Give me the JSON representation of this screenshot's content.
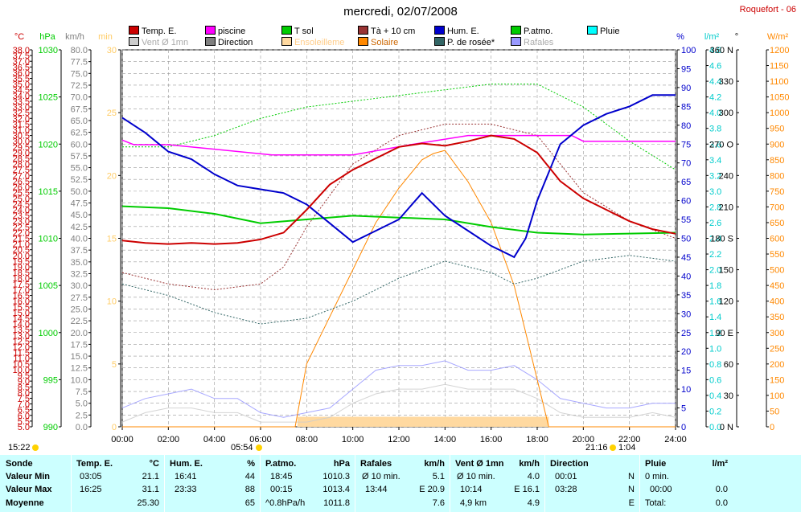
{
  "title": "mercredi, 02/07/2008",
  "station": "Roquefort - 06",
  "legend": [
    {
      "label": "Temp. E.",
      "color": "#cc0000"
    },
    {
      "label": "piscine",
      "color": "#ff00ff"
    },
    {
      "label": "T sol",
      "color": "#00cc00"
    },
    {
      "label": "Tà + 10 cm",
      "color": "#993333"
    },
    {
      "label": "Hum. E.",
      "color": "#0000cc"
    },
    {
      "label": "P.atmo.",
      "color": "#00cc00"
    },
    {
      "label": "Pluie",
      "color": "#00ffff"
    },
    {
      "label": "Vent Ø 1mn",
      "color": "#cccccc"
    },
    {
      "label": "Direction",
      "color": "#808080"
    },
    {
      "label": "Ensoleilleme",
      "color": "#ffd9a0"
    },
    {
      "label": "Solaire",
      "color": "#ff8800"
    },
    {
      "label": "P. de rosée*",
      "color": "#336666"
    },
    {
      "label": "Rafales",
      "color": "#9999ff"
    }
  ],
  "chart_data": {
    "type": "line",
    "x_ticks": [
      "00:00",
      "02:00",
      "04:00",
      "06:00",
      "08:00",
      "10:00",
      "12:00",
      "14:00",
      "16:00",
      "18:00",
      "20:00",
      "22:00",
      "24:00"
    ],
    "axes": {
      "temp_c": {
        "unit": "°C",
        "range": [
          5.0,
          38.0
        ],
        "step": 0.5,
        "color": "#cc0000"
      },
      "pressure_hpa": {
        "unit": "hPa",
        "range": [
          990,
          1030
        ],
        "step": 5,
        "color": "#00cc00"
      },
      "wind_kmh": {
        "unit": "km/h",
        "range": [
          0,
          80
        ],
        "step": 2.5,
        "color": "#808080"
      },
      "minutes": {
        "unit": "min",
        "range": [
          0,
          30
        ],
        "step": 5,
        "color": "#ffcc66"
      },
      "humidity_pct": {
        "unit": "%",
        "range": [
          0,
          100
        ],
        "step": 5,
        "color": "#0000cc"
      },
      "rain_lm2": {
        "unit": "l/m²",
        "range": [
          0,
          4.8
        ],
        "step": 0.2,
        "color": "#00cccc"
      },
      "direction_deg": {
        "unit": "°",
        "ticks": [
          "0 N",
          "30",
          "60",
          "90 E",
          "120",
          "150",
          "180 S",
          "210",
          "240",
          "270 O",
          "300",
          "330",
          "360 N"
        ]
      },
      "solar_wm2": {
        "unit": "W/m²",
        "range": [
          0,
          1200
        ],
        "step": 50,
        "color": "#ff8800"
      }
    },
    "series": [
      {
        "name": "Temp. E.",
        "unit": "°C",
        "x": [
          0,
          1,
          2,
          3,
          4,
          5,
          6,
          7,
          8,
          9,
          10,
          11,
          12,
          13,
          14,
          15,
          16,
          17,
          18,
          19,
          20,
          21,
          22,
          23,
          24
        ],
        "values": [
          21.3,
          21.1,
          21.0,
          21.1,
          21.0,
          21.1,
          21.4,
          22.0,
          24.0,
          26.2,
          27.5,
          28.5,
          29.5,
          29.8,
          29.6,
          30.0,
          30.5,
          30.2,
          29.0,
          26.5,
          25.0,
          24.0,
          23.0,
          22.3,
          21.9
        ]
      },
      {
        "name": "piscine",
        "unit": "°C",
        "x": [
          0,
          0.5,
          2,
          3.5,
          6.5,
          10,
          12.5,
          15,
          17,
          18.5,
          19.5,
          20,
          24
        ],
        "values": [
          30.1,
          29.7,
          29.7,
          29.4,
          28.8,
          28.8,
          29.7,
          30.5,
          30.5,
          30.5,
          30.5,
          30.0,
          30.0
        ]
      },
      {
        "name": "Hum. E.",
        "unit": "%",
        "x": [
          0,
          1,
          2,
          3,
          4,
          5,
          6,
          7,
          8,
          9,
          10,
          11,
          12,
          13,
          14,
          15,
          16,
          17,
          17.5,
          18,
          19,
          20,
          21,
          22,
          23,
          24
        ],
        "values": [
          82,
          78,
          73,
          71,
          67,
          64,
          63,
          62,
          59,
          54,
          49,
          52,
          55,
          62,
          56,
          52,
          48,
          45,
          50,
          60,
          75,
          80,
          83,
          85,
          88,
          88
        ]
      },
      {
        "name": "P.atmo.",
        "unit": "hPa",
        "x": [
          0,
          2,
          4,
          6,
          8,
          10,
          12,
          14,
          16,
          18,
          20,
          22,
          24
        ],
        "values": [
          1013.4,
          1013.2,
          1012.6,
          1011.6,
          1012.0,
          1012.4,
          1012.2,
          1012.0,
          1011.2,
          1010.6,
          1010.4,
          1010.5,
          1010.6
        ]
      },
      {
        "name": "Tà + 10 cm",
        "unit": "°C",
        "x": [
          0,
          2,
          4,
          6,
          7,
          8,
          10,
          12,
          14,
          16,
          18,
          19,
          20,
          22,
          24
        ],
        "values": [
          18.5,
          17.5,
          17.0,
          17.5,
          19.0,
          22.5,
          28.0,
          30.5,
          31.5,
          31.5,
          30.5,
          28.0,
          25.5,
          23.0,
          21.5
        ]
      },
      {
        "name": "T sol",
        "unit": "°C",
        "x": [
          0,
          2,
          4,
          6,
          8,
          10,
          12,
          14,
          16,
          18,
          20,
          22,
          24
        ],
        "values": [
          29.5,
          29.5,
          30.5,
          32.0,
          33.0,
          33.5,
          34.0,
          34.5,
          35.0,
          35.0,
          33.0,
          30.0,
          27.5
        ]
      },
      {
        "name": "P. de rosée*",
        "unit": "°C",
        "x": [
          0,
          2,
          4,
          6,
          8,
          10,
          12,
          14,
          16,
          17,
          18,
          20,
          22,
          24
        ],
        "values": [
          17.5,
          16.5,
          15.0,
          14.0,
          14.5,
          16.0,
          18.0,
          19.5,
          18.5,
          17.5,
          18.0,
          19.5,
          20.0,
          19.5
        ]
      },
      {
        "name": "Solaire",
        "unit": "W/m²",
        "x": [
          0,
          7.5,
          8,
          9,
          10,
          11,
          12,
          13,
          13.5,
          14,
          15,
          16,
          17,
          17.5,
          18,
          18.5,
          24
        ],
        "values": [
          0,
          0,
          200,
          350,
          500,
          650,
          760,
          850,
          870,
          880,
          780,
          650,
          450,
          300,
          150,
          0,
          0
        ]
      },
      {
        "name": "Rafales",
        "unit": "km/h",
        "x": [
          0,
          1,
          2,
          3,
          4,
          5,
          6,
          7,
          8,
          9,
          10,
          11,
          12,
          13,
          14,
          15,
          16,
          17,
          18,
          19,
          20,
          21,
          22,
          23,
          24
        ],
        "values": [
          4,
          6,
          7,
          8,
          6,
          6,
          3,
          2,
          3,
          4,
          8,
          12,
          13,
          13,
          14,
          12,
          12,
          13,
          10,
          6,
          5,
          4,
          4,
          5,
          5
        ]
      },
      {
        "name": "Vent Ø 1mn",
        "unit": "km/h",
        "x": [
          0,
          1,
          2,
          3,
          4,
          5,
          6,
          7,
          8,
          9,
          10,
          11,
          12,
          13,
          14,
          15,
          16,
          17,
          18,
          19,
          20,
          21,
          22,
          23,
          24
        ],
        "values": [
          1,
          3,
          4,
          4,
          3,
          3,
          1,
          1,
          1,
          2,
          5,
          7,
          8,
          8,
          9,
          8,
          8,
          8,
          6,
          3,
          2,
          2,
          2,
          3,
          2
        ]
      }
    ],
    "sunrise": "05:54",
    "sunset": "21:16",
    "day_length": "15:22",
    "sun_time": "1:04"
  },
  "stats": {
    "sonde": {
      "header": "Sonde",
      "rows": [
        "Valeur Min",
        "Valeur Max",
        "Moyenne"
      ]
    },
    "temp": {
      "header": "Temp. E.",
      "unit": "°C",
      "min_time": "03:05",
      "min": "21.1",
      "max_time": "16:25",
      "max": "31.1",
      "avg": "25.30"
    },
    "hum": {
      "header": "Hum. E.",
      "unit": "%",
      "min_time": "16:41",
      "min": "44",
      "max_time": "23:33",
      "max": "88",
      "avg": "65"
    },
    "patmo": {
      "header": "P.atmo.",
      "unit": "hPa",
      "min_time": "18:45",
      "min": "1010.3",
      "max_time": "00:15",
      "max": "1013.4",
      "avg_label": "^0.8hPa/h",
      "avg": "1011.8"
    },
    "rafales": {
      "header": "Rafales",
      "unit": "km/h",
      "r1_label": "Ø 10 min.",
      "r1": "5.1",
      "r2_label": "13:44",
      "r2": "E 20.9",
      "r3": "7.6"
    },
    "vent": {
      "header": "Vent Ø 1mn",
      "unit": "km/h",
      "r1_label": "Ø 10 min.",
      "r1": "4.0",
      "r2_label": "10:14",
      "r2": "E 16.1",
      "r3_label": "4,9 km",
      "r3": "4.9"
    },
    "direction": {
      "header": "Direction",
      "r1_label": "00:01",
      "r1": "N",
      "r2_label": "03:28",
      "r2": "N",
      "r3": "E"
    },
    "pluie": {
      "header": "Pluie",
      "unit": "l/m²",
      "r1_label": "0 min.",
      "r2_label": "00:00",
      "r2": "0.0",
      "r3_label": "Total:",
      "r3": "0.0"
    }
  }
}
